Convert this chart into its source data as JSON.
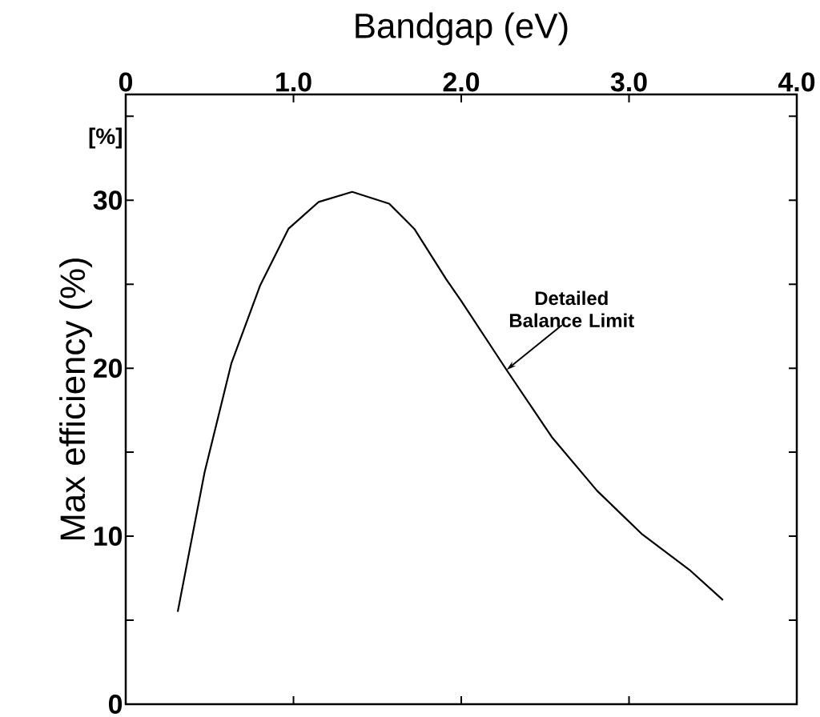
{
  "chart_data": {
    "type": "line",
    "title": "Bandgap (eV)",
    "ylabel": "Max efficiency (%)",
    "x": [
      0.31,
      0.47,
      0.63,
      0.8,
      0.97,
      1.15,
      1.35,
      1.57,
      1.72,
      1.91,
      2.0,
      2.27,
      2.54,
      2.81,
      3.08,
      3.36,
      3.56
    ],
    "series": [
      {
        "color": "#000000",
        "values": [
          5.5,
          13.8,
          20.3,
          24.9,
          28.3,
          29.9,
          30.5,
          29.8,
          28.3,
          25.3,
          24.0,
          19.9,
          15.9,
          12.7,
          10.1,
          8.0,
          6.2
        ]
      }
    ],
    "xlim": [
      0,
      4
    ],
    "ylim": [
      0,
      36.3
    ],
    "xticks": [
      0,
      {
        "value": 1,
        "label": "1.0"
      },
      {
        "value": 2,
        "label": "2.0"
      },
      {
        "value": 3,
        "label": "3.0"
      },
      {
        "value": 4,
        "label": "4.0"
      }
    ],
    "yticks": [
      0,
      {
        "value": 5,
        "label": null
      },
      10,
      {
        "value": 15,
        "label": null
      },
      20,
      {
        "value": 25,
        "label": null
      },
      30,
      {
        "value": 35,
        "label": null
      }
    ],
    "annotations": [
      "[%]",
      {
        "text": "Detailed Balance Limit",
        "x": 2.27,
        "y": 19.9
      }
    ],
    "grid": false,
    "marker": "none",
    "line_style": "solid"
  }
}
